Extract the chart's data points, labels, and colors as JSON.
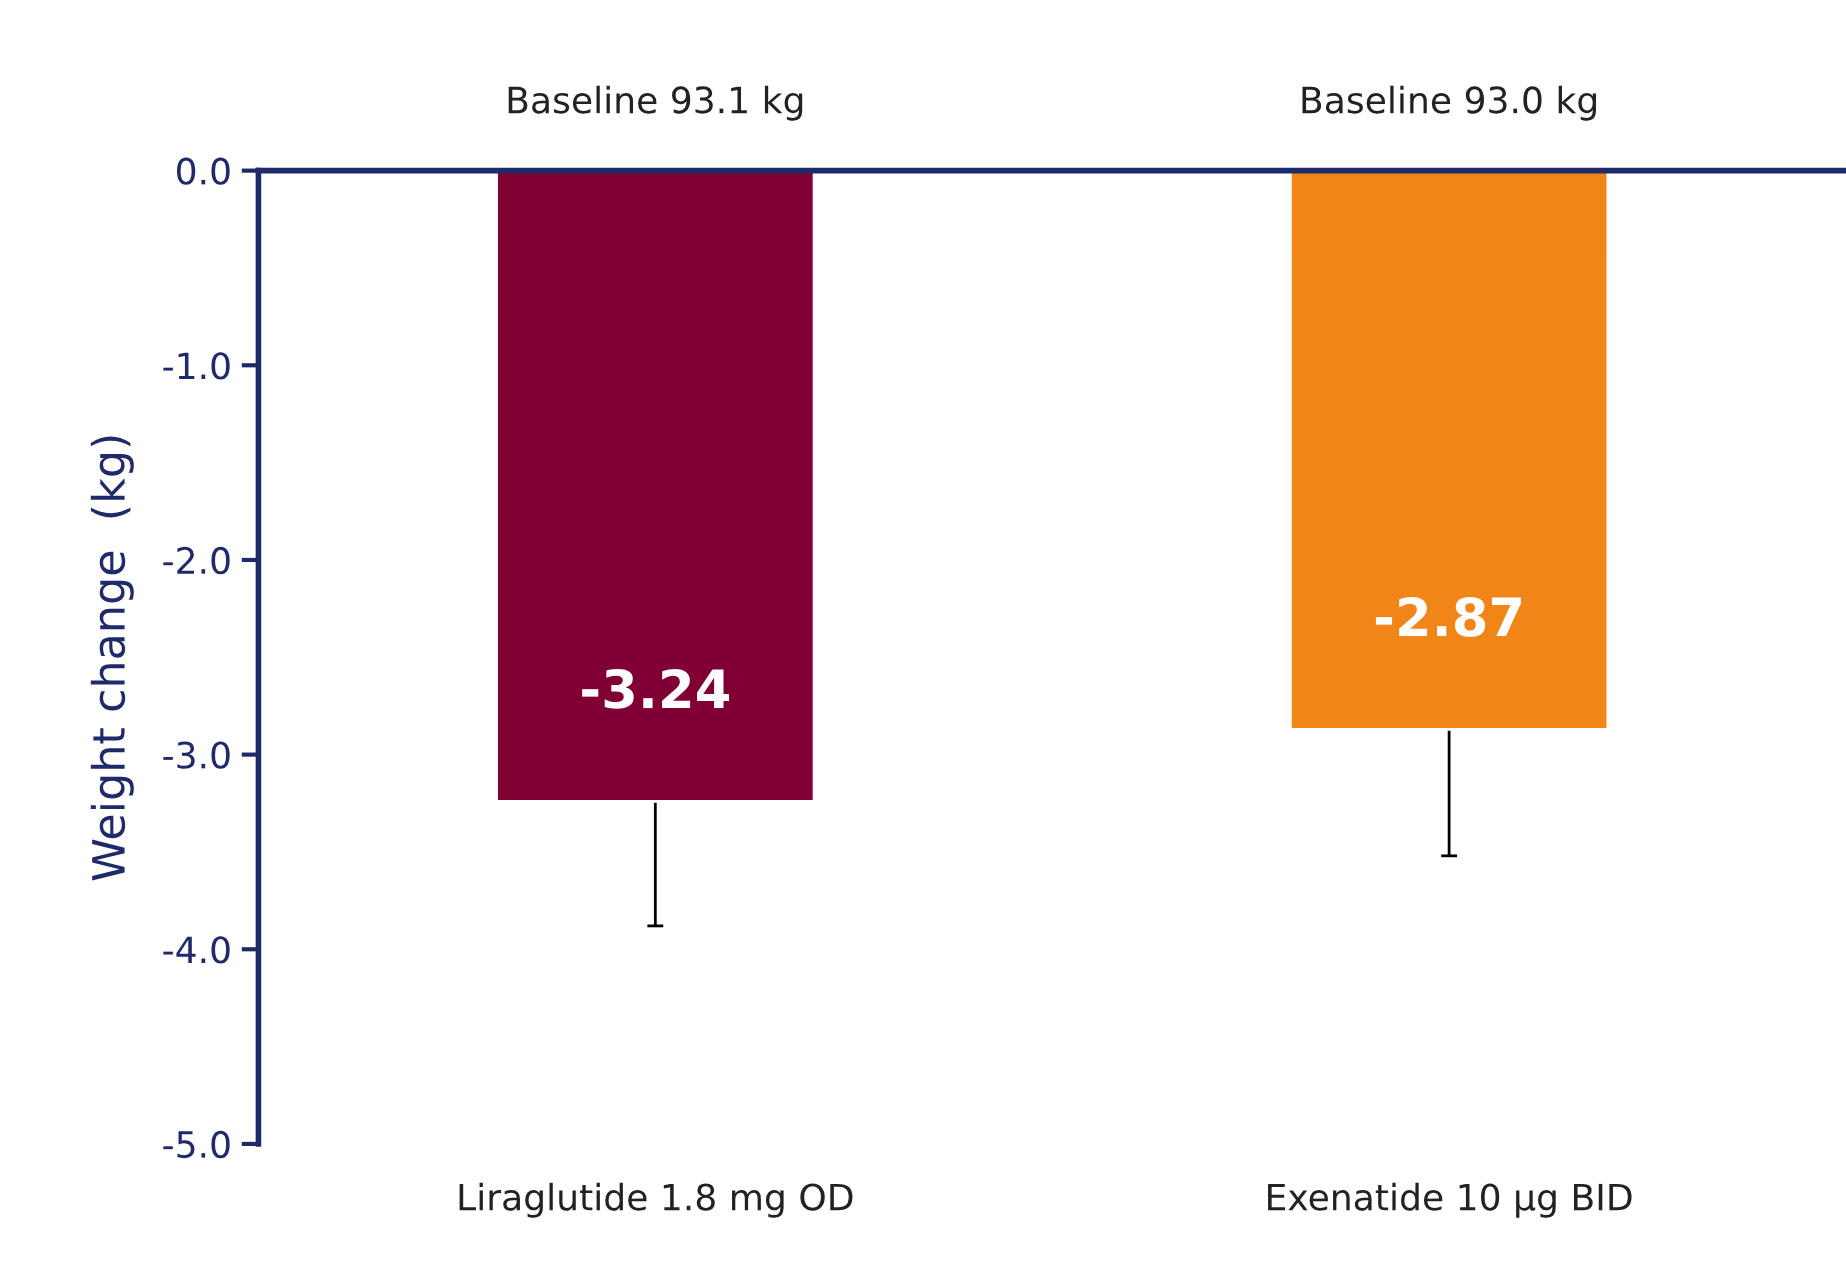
{
  "chart_data": {
    "type": "bar",
    "ylabel": "Weight change  (kg)",
    "categories": [
      "Liraglutide 1.8 mg OD",
      "Exenatide 10 µg BID"
    ],
    "values": [
      -3.24,
      -2.87
    ],
    "colors": [
      "#800033",
      "#f28518"
    ],
    "errors": [
      [
        -3.88,
        -3.24
      ],
      [
        -3.52,
        -2.87
      ]
    ],
    "data_labels": true,
    "annotations": [
      "Baseline 93.1 kg",
      "Baseline 93.0 kg"
    ],
    "ylim": [
      -5.0,
      0.0
    ],
    "yticks": [
      {
        "value": 0,
        "label": "0.0"
      },
      {
        "value": -1,
        "label": "-1.0"
      },
      {
        "value": -2,
        "label": "-2.0"
      },
      {
        "value": -3,
        "label": "-3.0"
      },
      {
        "value": -4,
        "label": "-4.0"
      },
      {
        "value": -5,
        "label": "-5.0"
      }
    ],
    "grid": false,
    "legend": false
  }
}
